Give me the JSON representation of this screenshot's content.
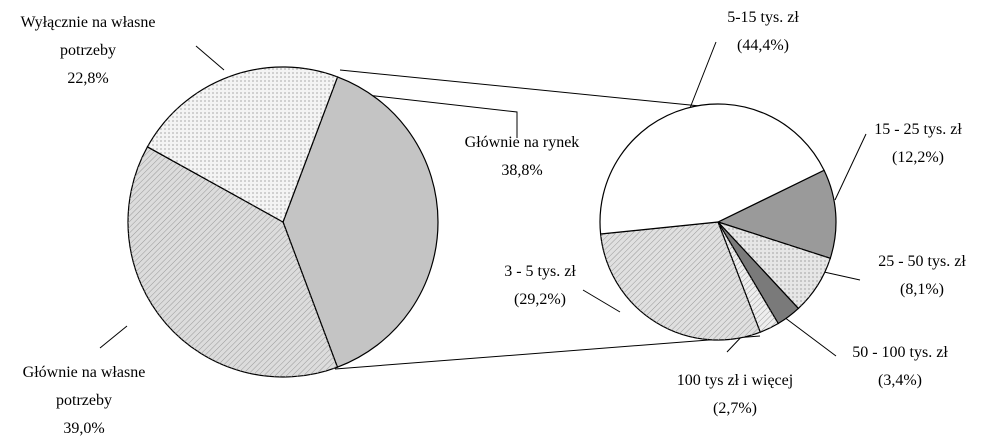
{
  "chart_data": [
    {
      "type": "pie",
      "categories": [
        "Głównie na rynek",
        "Głównie na własne potrzeby",
        "Wyłącznie na własne potrzeby"
      ],
      "values": [
        38.8,
        39.0,
        22.8
      ],
      "value_labels": [
        "38,8%",
        "39,0%",
        "22,8%"
      ],
      "colors": [
        "#c4c4c4",
        "#dcdcdc",
        "#f4f4f4"
      ]
    },
    {
      "type": "pie",
      "categories": [
        "15 - 25 tys. zł",
        "25 - 50 tys. zł",
        "50 - 100 tys. zł",
        "100 tys zł i więcej",
        "3 - 5 tys. zł",
        "5-15 tys. zł"
      ],
      "values": [
        12.2,
        8.1,
        3.4,
        2.7,
        29.2,
        44.4
      ],
      "value_labels": [
        "(12,2%)",
        "(8,1%)",
        "(3,4%)",
        "(2,7%)",
        "(29,2%)",
        "(44,4%)"
      ],
      "colors": [
        "#9a9a9a",
        "#e6e6e6",
        "#7a7a7a",
        "#eeeeee",
        "#e0e0e0",
        "#ffffff"
      ]
    }
  ]
}
